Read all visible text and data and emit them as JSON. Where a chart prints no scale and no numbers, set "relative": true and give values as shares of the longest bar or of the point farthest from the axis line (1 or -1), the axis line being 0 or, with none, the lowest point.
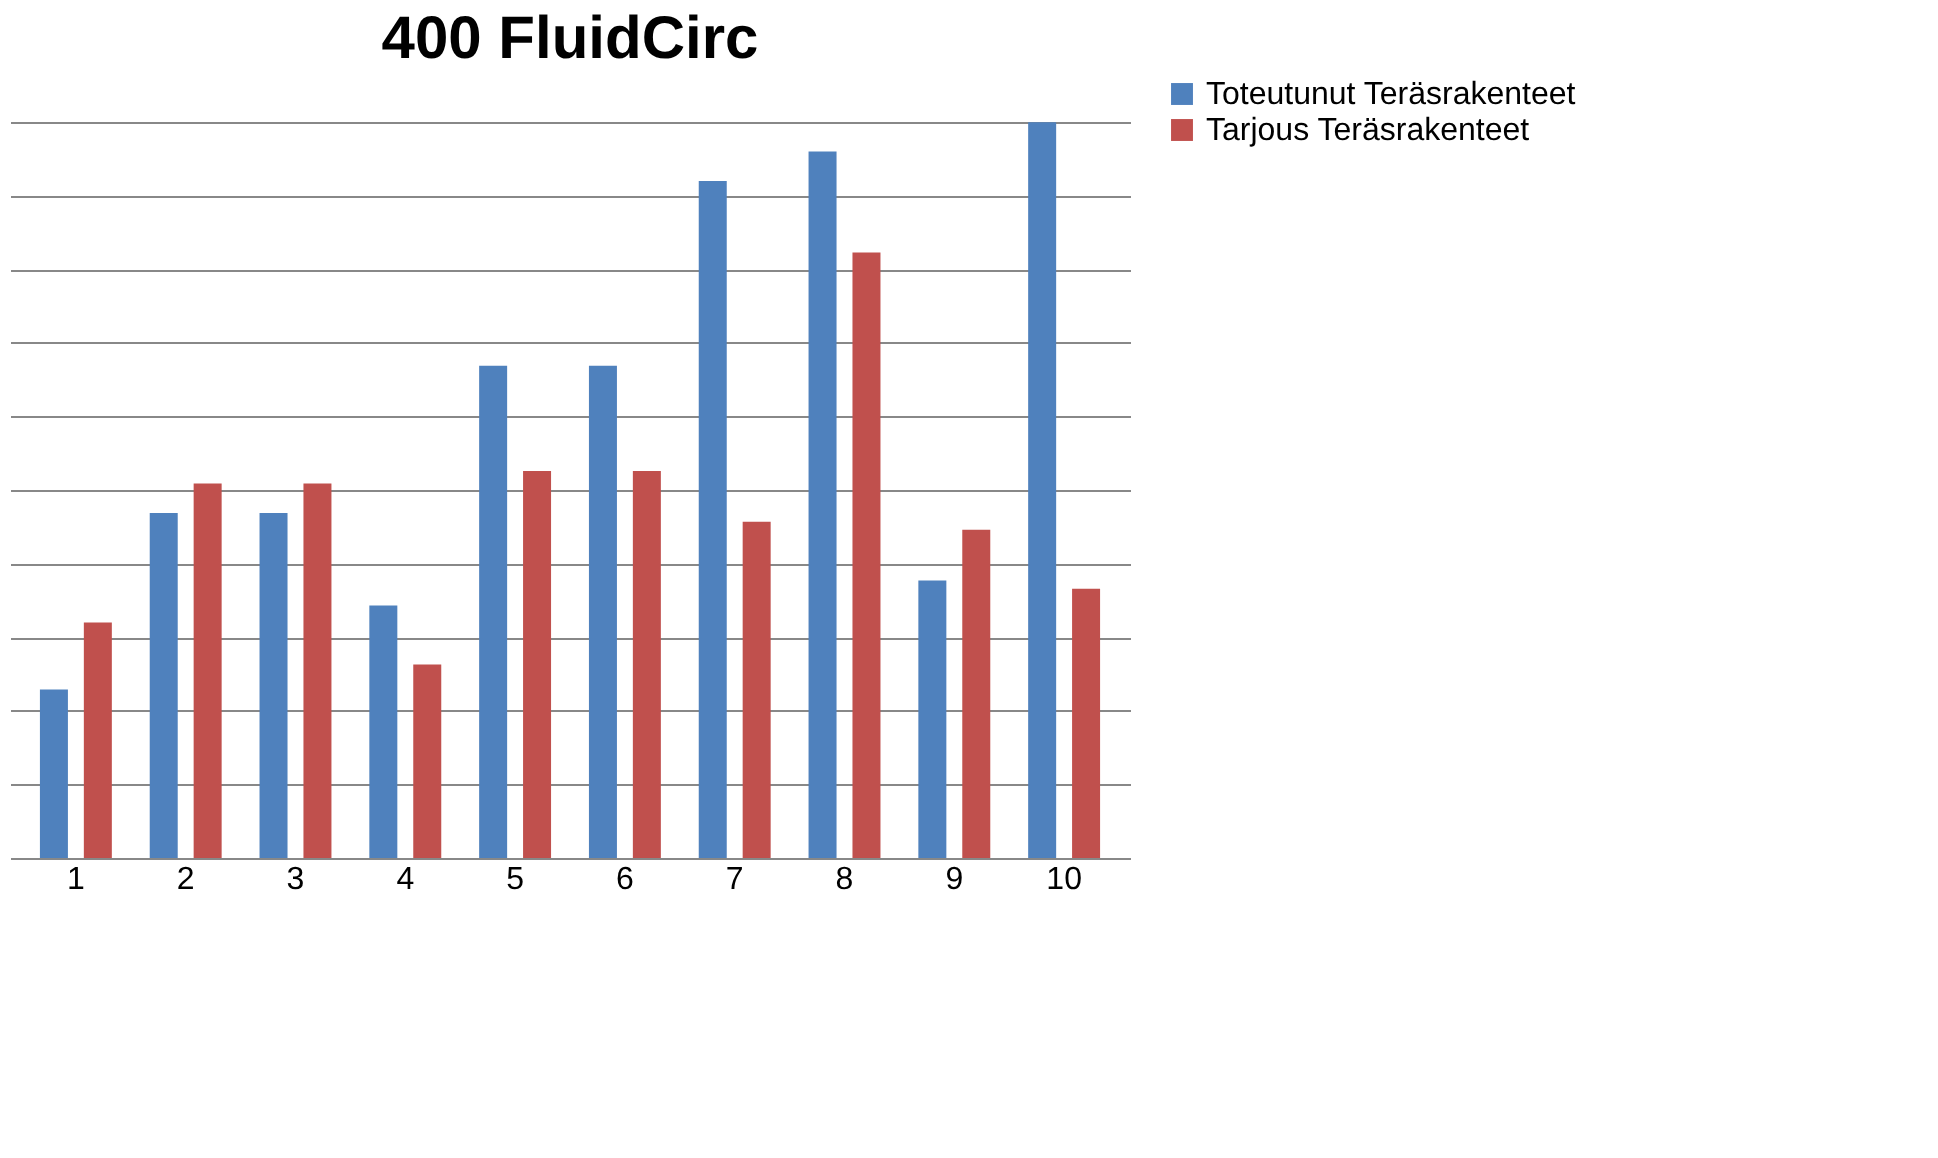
{
  "chart_data": {
    "type": "bar",
    "title": "400 FluidCirc",
    "relative": true,
    "categories": [
      "1",
      "2",
      "3",
      "4",
      "5",
      "6",
      "7",
      "8",
      "9",
      "10"
    ],
    "series": [
      {
        "name": "Toteutunut Teräsrakenteet",
        "color": "#4f81bd",
        "values": [
          0.229,
          0.469,
          0.469,
          0.343,
          0.669,
          0.669,
          0.92,
          0.96,
          0.377,
          1
        ]
      },
      {
        "name": "Tarjous Teräsrakenteet",
        "color": "#c0504d",
        "values": [
          0.32,
          0.509,
          0.509,
          0.263,
          0.526,
          0.526,
          0.457,
          0.823,
          0.446,
          0.366
        ]
      }
    ],
    "grid": "y",
    "legend": "right"
  }
}
